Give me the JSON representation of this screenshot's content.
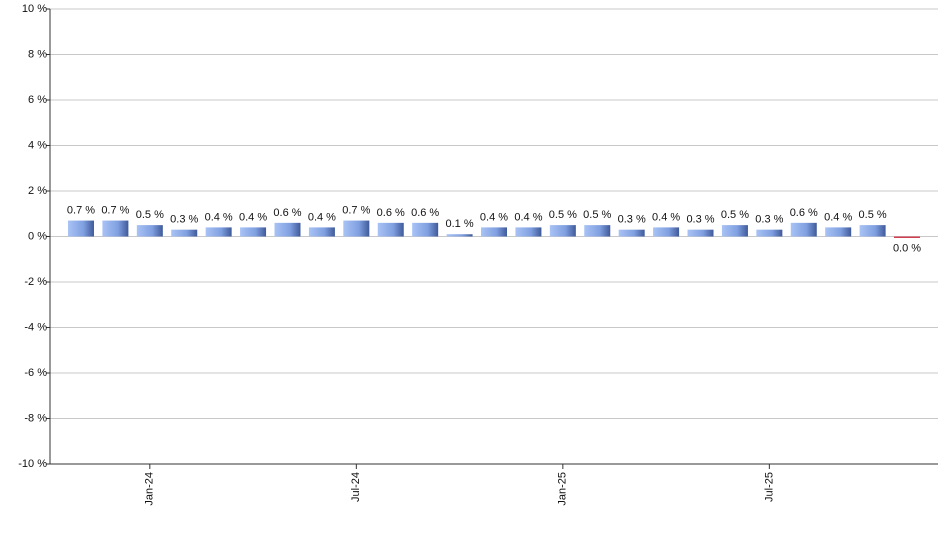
{
  "chart_data": {
    "type": "bar",
    "categories": [
      null,
      null,
      "Jan-24",
      null,
      null,
      null,
      null,
      null,
      "Jul-24",
      null,
      null,
      null,
      null,
      null,
      "Jan-25",
      null,
      null,
      null,
      null,
      null,
      "Jul-25",
      null,
      null,
      null,
      null
    ],
    "values": [
      0.7,
      0.7,
      0.5,
      0.3,
      0.4,
      0.4,
      0.6,
      0.4,
      0.7,
      0.6,
      0.6,
      0.1,
      0.4,
      0.4,
      0.5,
      0.5,
      0.3,
      0.4,
      0.3,
      0.5,
      0.3,
      0.6,
      0.4,
      0.5,
      0.0
    ],
    "value_labels": [
      "0.7 %",
      "0.7 %",
      "0.5 %",
      "0.3 %",
      "0.4 %",
      "0.4 %",
      "0.6 %",
      "0.4 %",
      "0.7 %",
      "0.6 %",
      "0.6 %",
      "0.1 %",
      "0.4 %",
      "0.4 %",
      "0.5 %",
      "0.5 %",
      "0.3 %",
      "0.4 %",
      "0.3 %",
      "0.5 %",
      "0.3 %",
      "0.6 %",
      "0.4 %",
      "0.5 %",
      "0.0 %"
    ],
    "color": "#7f9fe0",
    "negative_color": "#d04050",
    "ylim": [
      -10,
      10
    ],
    "yticks": [
      {
        "value": -10,
        "label": "-10 %"
      },
      {
        "value": -8,
        "label": "-8 %"
      },
      {
        "value": -6,
        "label": "-6 %"
      },
      {
        "value": -4,
        "label": "-4 %"
      },
      {
        "value": -2,
        "label": "-2 %"
      },
      {
        "value": 0,
        "label": "0 %"
      },
      {
        "value": 2,
        "label": "2 %"
      },
      {
        "value": 4,
        "label": "4 %"
      },
      {
        "value": 6,
        "label": "6 %"
      },
      {
        "value": 8,
        "label": "8 %"
      },
      {
        "value": 10,
        "label": "10 %"
      }
    ],
    "grid": true
  }
}
